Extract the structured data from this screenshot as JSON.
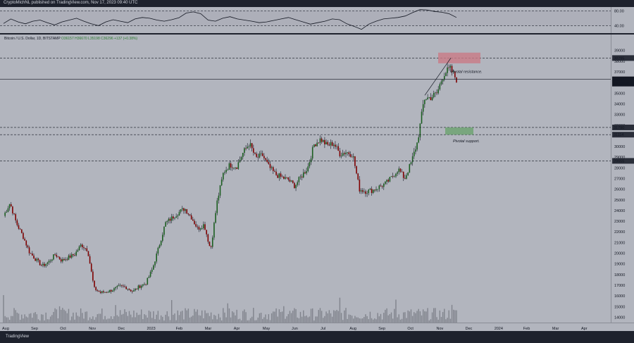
{
  "header": {
    "text": "CryptoMichNL published on TradingView.com, Nov 17, 2023 09:40 UTC"
  },
  "legend": {
    "symbol": "Bitcoin / U.S. Dollar, 1D, BITSTAMP",
    "ohlc": "O36157 H36670 L35198 C36296 +137 (+0.38%)"
  },
  "footer": {
    "brand": "TradingView"
  },
  "chart_data": {
    "type": "candlestick",
    "title": "Bitcoin / U.S. Dollar, 1D, BITSTAMP",
    "ylim": [
      13500,
      40500
    ],
    "y_ticks": [
      14000,
      15000,
      16000,
      17000,
      18000,
      19000,
      20000,
      21000,
      22000,
      23000,
      24000,
      25000,
      26000,
      27000,
      28000,
      29000,
      30000,
      31000,
      32000,
      33000,
      34000,
      35000,
      36000,
      37000,
      38000,
      39000
    ],
    "x_ticks": [
      "Aug",
      "Sep",
      "Oct",
      "Nov",
      "Dec",
      "2023",
      "Feb",
      "Mar",
      "Apr",
      "May",
      "Jun",
      "Jul",
      "Aug",
      "Sep",
      "Oct",
      "Nov",
      "Dec",
      "2024",
      "Feb",
      "Mar",
      "Apr"
    ],
    "closes": [
      23500,
      24700,
      22800,
      21600,
      20100,
      19400,
      18800,
      19200,
      19900,
      19300,
      19600,
      19900,
      20800,
      20300,
      16700,
      16300,
      16400,
      16600,
      16900,
      16800,
      16400,
      16900,
      17200,
      18500,
      20600,
      22800,
      23300,
      23800,
      24200,
      23400,
      22300,
      22700,
      20300,
      24800,
      27600,
      28300,
      28100,
      29400,
      30300,
      28900,
      29200,
      28100,
      27400,
      27100,
      26900,
      26300,
      27200,
      28000,
      30200,
      30700,
      30100,
      30300,
      29300,
      29500,
      29200,
      26000,
      25800,
      25900,
      26200,
      26500,
      27100,
      27900,
      27000,
      28500,
      30500,
      34500,
      34600,
      35000,
      36800,
      37300,
      36296
    ],
    "price_labels": [
      {
        "value": "38295"
      },
      {
        "value": "36296",
        "sub": "14:13:59"
      },
      {
        "value": "31790"
      },
      {
        "value": "31114"
      },
      {
        "value": "28655"
      }
    ],
    "rsi": {
      "levels": [
        40,
        80
      ],
      "values": [
        46,
        58,
        50,
        45,
        52,
        55,
        48,
        42,
        50,
        55,
        60,
        52,
        45,
        40,
        50,
        56,
        52,
        48,
        58,
        62,
        60,
        55,
        52,
        56,
        61,
        74,
        77,
        72,
        55,
        52,
        60,
        64,
        58,
        55,
        52,
        48,
        50,
        54,
        58,
        62,
        56,
        50,
        44,
        48,
        52,
        58,
        56,
        45,
        38,
        30,
        44,
        52,
        58,
        60,
        62,
        66,
        75,
        83,
        82,
        78,
        76,
        72,
        62
      ]
    },
    "annotations": [
      "Pivotal resistance.",
      "Pivotal support."
    ],
    "currency": "USD"
  }
}
